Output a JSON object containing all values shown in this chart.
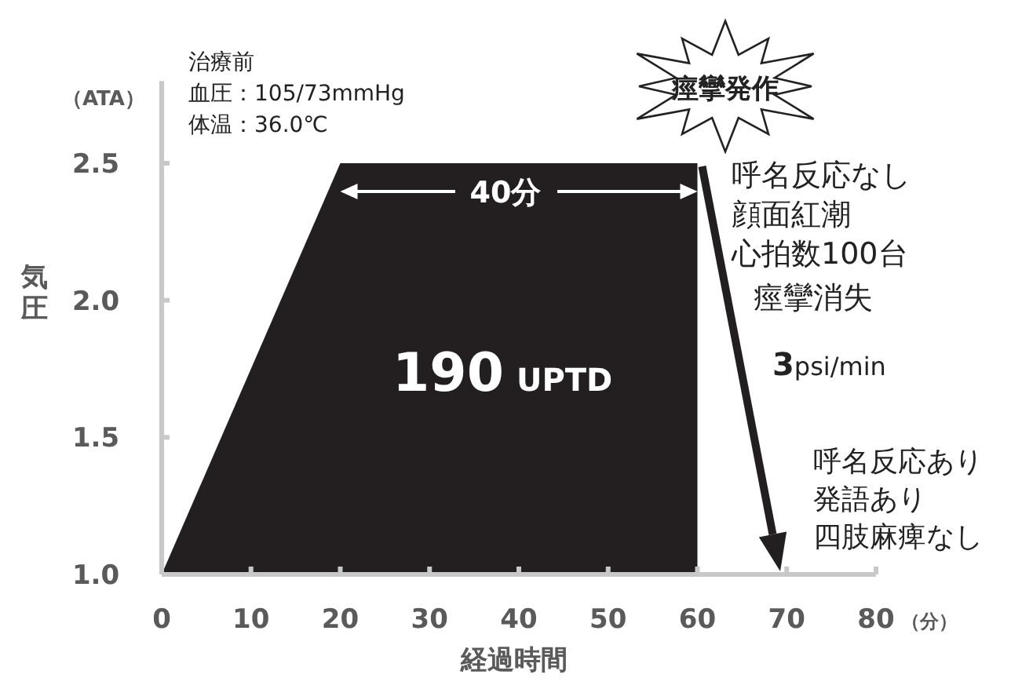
{
  "chart_data": {
    "type": "area",
    "xlabel": "経過時間",
    "ylabel": "気圧",
    "xlim": [
      0,
      80
    ],
    "xticks": [
      0,
      10,
      20,
      30,
      40,
      50,
      60,
      70,
      80
    ],
    "ylim": [
      1.0,
      2.8
    ],
    "yticks": [
      {
        "value": 1,
        "label": "1.0"
      },
      1.5,
      {
        "value": 2,
        "label": "2.0"
      },
      2.5
    ],
    "series": [
      {
        "color": "#231f20",
        "x": [
          0,
          20,
          60,
          60
        ],
        "values": [
          1.0,
          2.5,
          2.5,
          1.0
        ]
      }
    ],
    "annotations": [
      "治療前",
      "血圧：105/73mmHg",
      "体温：36.0℃",
      "痙攣発作",
      "40分",
      "190 UPTD",
      "呼名反応なし",
      "顔面紅潮",
      "心拍数100台",
      "痙攣消失",
      "3psi/min",
      "呼名反応あり",
      "発語あり",
      "四肢麻痺なし",
      "（ATA）",
      "（分）"
    ],
    "grid": false
  }
}
